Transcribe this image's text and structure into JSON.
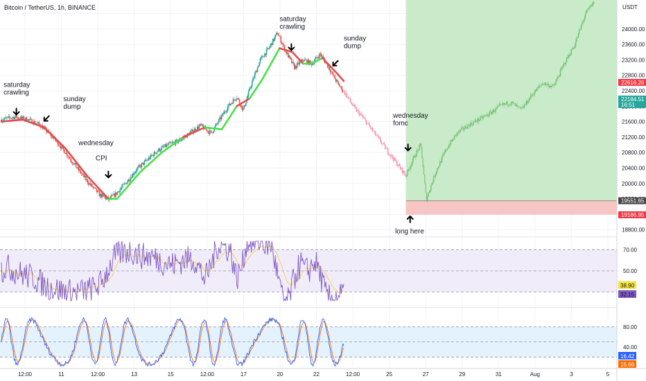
{
  "title": "Bitcoin / TetherUS, 1h, BINANCE",
  "currency": "USDT",
  "colors": {
    "up": "#26a69a",
    "down": "#ef5350",
    "ma_up": "#45e145",
    "ma_down": "#e04e4e",
    "long_zone": "#c9ebc9",
    "stop_zone": "#f8c5c5",
    "rsi_band": "#f0ecfa",
    "rsi_line": "#7e57c2",
    "stoch_band": "#e3f2fd",
    "stoch_k": "#2962ff",
    "stoch_d": "#ff6d00"
  },
  "chart_data": {
    "type": "candlestick",
    "price_axis": {
      "ticks": [
        "24400.00",
        "24000.00",
        "23600.00",
        "23200.00",
        "22800.00",
        "22400.00",
        "22000.00",
        "21600.00",
        "21200.00",
        "20800.00",
        "20400.00",
        "20000.00",
        "19600.00",
        "19200.00",
        "18800.00"
      ],
      "tick_values": [
        24400,
        24000,
        23600,
        23200,
        22800,
        22400,
        22000,
        21600,
        21200,
        20800,
        20400,
        20000,
        19600,
        19200,
        18800
      ],
      "range": [
        18650,
        24750
      ]
    },
    "time_axis": [
      "12:00",
      "11",
      "12:00",
      "13",
      "15",
      "12:00",
      "17",
      "20",
      "22",
      "12:00",
      "25",
      "27",
      "29",
      "31",
      "Aug",
      "3",
      "5"
    ],
    "price_path": [
      {
        "day": 0.0,
        "price": 21650
      },
      {
        "day": 0.6,
        "price": 21720
      },
      {
        "day": 1.2,
        "price": 21660
      },
      {
        "day": 1.8,
        "price": 21520
      },
      {
        "day": 2.4,
        "price": 21200
      },
      {
        "day": 3.0,
        "price": 20800
      },
      {
        "day": 3.6,
        "price": 20350
      },
      {
        "day": 4.1,
        "price": 20000
      },
      {
        "day": 4.6,
        "price": 19700
      },
      {
        "day": 5.0,
        "price": 19580
      },
      {
        "day": 5.3,
        "price": 19700
      },
      {
        "day": 5.8,
        "price": 20000
      },
      {
        "day": 6.3,
        "price": 20350
      },
      {
        "day": 6.8,
        "price": 20600
      },
      {
        "day": 7.3,
        "price": 20850
      },
      {
        "day": 7.8,
        "price": 21000
      },
      {
        "day": 8.3,
        "price": 21100
      },
      {
        "day": 8.8,
        "price": 21300
      },
      {
        "day": 9.3,
        "price": 21500
      },
      {
        "day": 9.8,
        "price": 21300
      },
      {
        "day": 10.2,
        "price": 21650
      },
      {
        "day": 10.6,
        "price": 22000
      },
      {
        "day": 11.0,
        "price": 22250
      },
      {
        "day": 11.3,
        "price": 21900
      },
      {
        "day": 11.7,
        "price": 22600
      },
      {
        "day": 12.1,
        "price": 23200
      },
      {
        "day": 12.5,
        "price": 23500
      },
      {
        "day": 12.9,
        "price": 23900
      },
      {
        "day": 13.3,
        "price": 23400
      },
      {
        "day": 13.7,
        "price": 23000
      },
      {
        "day": 14.1,
        "price": 23200
      },
      {
        "day": 14.5,
        "price": 23100
      },
      {
        "day": 14.9,
        "price": 23350
      },
      {
        "day": 15.3,
        "price": 23000
      },
      {
        "day": 15.7,
        "price": 22600
      },
      {
        "day": 16.1,
        "price": 22300
      },
      {
        "day": 16.5,
        "price": 21950
      },
      {
        "day": 16.9,
        "price": 21700
      },
      {
        "day": 17.3,
        "price": 21400
      },
      {
        "day": 17.7,
        "price": 21100
      },
      {
        "day": 18.1,
        "price": 20800
      },
      {
        "day": 18.5,
        "price": 20500
      },
      {
        "day": 18.9,
        "price": 20200
      },
      {
        "day": 19.3,
        "price": 20700
      },
      {
        "day": 19.6,
        "price": 21000
      },
      {
        "day": 19.85,
        "price": 19580
      },
      {
        "day": 20.3,
        "price": 20300
      },
      {
        "day": 20.8,
        "price": 20900
      },
      {
        "day": 21.3,
        "price": 21300
      },
      {
        "day": 21.8,
        "price": 21500
      },
      {
        "day": 22.3,
        "price": 21650
      },
      {
        "day": 22.8,
        "price": 21800
      },
      {
        "day": 23.3,
        "price": 22000
      },
      {
        "day": 23.8,
        "price": 22100
      },
      {
        "day": 24.3,
        "price": 21900
      },
      {
        "day": 24.8,
        "price": 22300
      },
      {
        "day": 25.3,
        "price": 22600
      },
      {
        "day": 25.8,
        "price": 22500
      },
      {
        "day": 26.3,
        "price": 23100
      },
      {
        "day": 26.8,
        "price": 23600
      },
      {
        "day": 27.3,
        "price": 24400
      },
      {
        "day": 27.7,
        "price": 24700
      }
    ],
    "ma_path": [
      {
        "day": 0.0,
        "price": 21600,
        "trend": "down"
      },
      {
        "day": 1.0,
        "price": 21650,
        "trend": "down"
      },
      {
        "day": 2.0,
        "price": 21450,
        "trend": "down"
      },
      {
        "day": 3.0,
        "price": 20900,
        "trend": "down"
      },
      {
        "day": 4.0,
        "price": 20200,
        "trend": "down"
      },
      {
        "day": 5.0,
        "price": 19600,
        "trend": "down"
      },
      {
        "day": 5.4,
        "price": 19600,
        "trend": "up"
      },
      {
        "day": 6.5,
        "price": 20300,
        "trend": "up"
      },
      {
        "day": 7.5,
        "price": 20800,
        "trend": "up"
      },
      {
        "day": 8.5,
        "price": 21200,
        "trend": "up"
      },
      {
        "day": 9.5,
        "price": 21450,
        "trend": "down"
      },
      {
        "day": 10.3,
        "price": 21400,
        "trend": "up"
      },
      {
        "day": 11.0,
        "price": 22000,
        "trend": "up"
      },
      {
        "day": 11.6,
        "price": 22200,
        "trend": "down"
      },
      {
        "day": 12.2,
        "price": 22700,
        "trend": "up"
      },
      {
        "day": 13.0,
        "price": 23500,
        "trend": "up"
      },
      {
        "day": 13.6,
        "price": 23400,
        "trend": "down"
      },
      {
        "day": 14.1,
        "price": 23100,
        "trend": "down"
      },
      {
        "day": 14.5,
        "price": 23100,
        "trend": "up"
      },
      {
        "day": 15.0,
        "price": 23250,
        "trend": "up"
      },
      {
        "day": 15.6,
        "price": 22900,
        "trend": "down"
      },
      {
        "day": 16.0,
        "price": 22650,
        "trend": "down"
      }
    ],
    "ma_end_day": 16.0,
    "last_shown_day": 27.7,
    "ghost_start_day": 16.0,
    "ghost_end_day": 18.9,
    "position": {
      "entry": 19551.65,
      "stop": 19186.95,
      "target": 24750,
      "start_day": 18.9,
      "end_day": 28.6
    },
    "price_labels": [
      {
        "text": "22616.26",
        "value": 22616.26,
        "color": "#f23645"
      },
      {
        "text": "22184.51",
        "value": 22184.51,
        "color": "#26a69a",
        "sub": "16:51"
      },
      {
        "text": "19551.65",
        "value": 19551.65,
        "color": "#4a4a4a"
      },
      {
        "text": "19186.95",
        "value": 19186.95,
        "color": "#f23645"
      }
    ],
    "annotations": [
      {
        "lines": [
          "saturday",
          "crawling"
        ],
        "day": 0.1,
        "price": 22500,
        "arrow": "down",
        "arrow_day": 0.7,
        "arrow_price": 21780
      },
      {
        "lines": [
          "sunday",
          "dump"
        ],
        "day": 2.9,
        "price": 22130,
        "arrow": "down-left",
        "arrow_day": 2.0,
        "arrow_price": 21620
      },
      {
        "lines": [
          "wednesday"
        ],
        "day": 3.6,
        "price": 20990,
        "arrow": null
      },
      {
        "lines": [
          "CPI"
        ],
        "day": 4.4,
        "price": 20600,
        "arrow": "down",
        "arrow_day": 5.0,
        "arrow_price": 20150
      },
      {
        "lines": [
          "saturday",
          "crawling"
        ],
        "day": 13.0,
        "price": 24200,
        "arrow": "down",
        "arrow_day": 13.55,
        "arrow_price": 23450
      },
      {
        "lines": [
          "sunday",
          "dump"
        ],
        "day": 16.0,
        "price": 23700,
        "arrow": "down-left",
        "arrow_day": 15.5,
        "arrow_price": 23050
      },
      {
        "lines": [
          "wednesday",
          "fomc"
        ],
        "day": 18.3,
        "price": 21700,
        "arrow": "down",
        "arrow_day": 19.0,
        "arrow_price": 20850
      },
      {
        "lines": [
          "long here"
        ],
        "day": 18.4,
        "price": 18700,
        "arrow": "up",
        "arrow_day": 19.1,
        "arrow_price": 19150
      }
    ],
    "rsi": {
      "levels": [
        "70.00",
        "50.00",
        "30.00"
      ],
      "level_values": [
        70,
        50,
        30
      ],
      "current": [
        "38.90",
        "32.15"
      ],
      "current_values": [
        38.9,
        32.15
      ],
      "range": [
        18,
        80
      ]
    },
    "stoch": {
      "levels": [
        "80.00",
        "40.00"
      ],
      "level_values": [
        80,
        40
      ],
      "current": [
        "16.42",
        "15.66"
      ],
      "current_values": [
        16.42,
        15.66
      ],
      "range": [
        0,
        110
      ]
    }
  }
}
